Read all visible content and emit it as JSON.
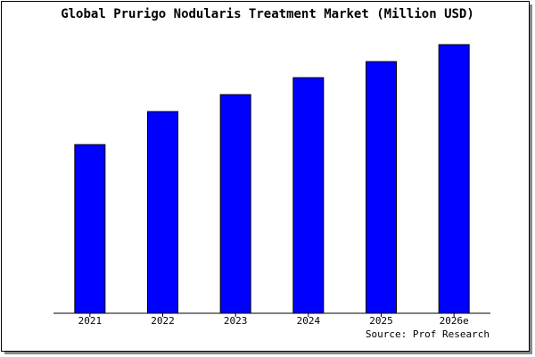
{
  "chart_data": {
    "type": "bar",
    "title": "Global Prurigo Nodularis Treatment Market (Million USD)",
    "categories": [
      "2021",
      "2022",
      "2023",
      "2024",
      "2025",
      "2026e"
    ],
    "values": [
      189,
      226,
      245,
      264,
      282,
      301
    ],
    "color": "#0000ff",
    "ylim": [
      0,
      301
    ],
    "source": "Source: Prof Research"
  }
}
